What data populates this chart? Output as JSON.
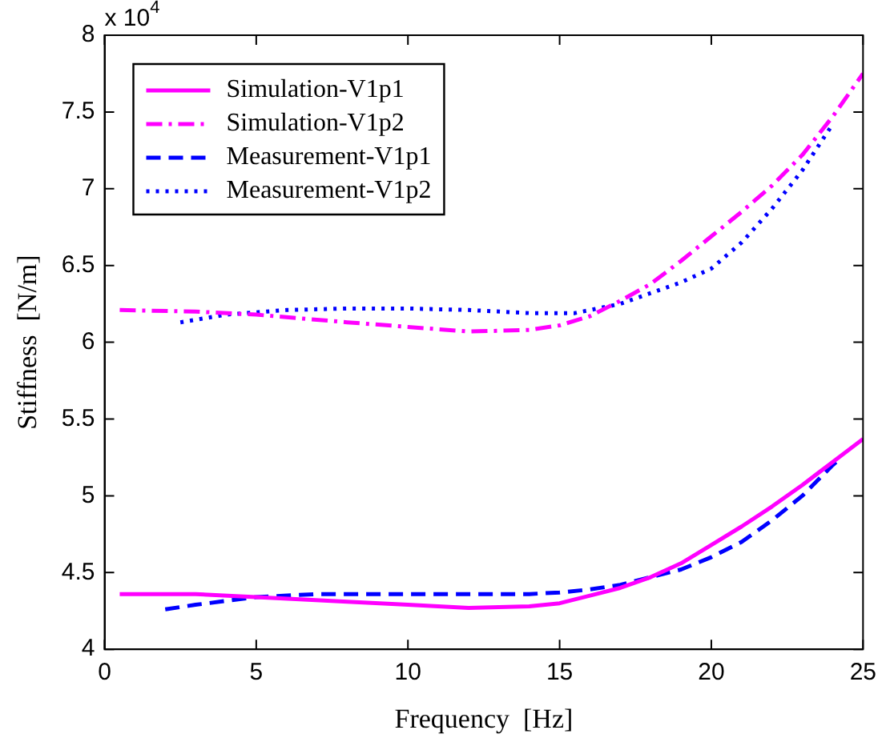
{
  "chart_data": {
    "type": "line",
    "xlabel": "Frequency  [Hz]",
    "ylabel": "Stiffness  [N/m]",
    "annotations": [
      "x 10$^{4}$"
    ],
    "xlim": [
      0,
      25
    ],
    "xticks": [
      0,
      5,
      10,
      15,
      20,
      25
    ],
    "ylim": [
      4,
      8
    ],
    "yticks": [
      4,
      4.5,
      5,
      5.5,
      6,
      6.5,
      7,
      7.5,
      8
    ],
    "grid": false,
    "legend": "top left",
    "marker": "none",
    "series": [
      {
        "name": "Simulation-V1p1",
        "color": "#ff00ff",
        "line_style": "solid",
        "x": [
          0.5,
          3,
          5,
          8,
          10,
          12,
          14,
          15,
          16,
          17,
          18,
          19,
          20,
          21,
          22,
          23,
          24,
          25
        ],
        "values": [
          4.36,
          4.36,
          4.34,
          4.31,
          4.29,
          4.27,
          4.28,
          4.3,
          4.35,
          4.4,
          4.47,
          4.56,
          4.68,
          4.8,
          4.93,
          5.07,
          5.22,
          5.37
        ]
      },
      {
        "name": "Simulation-V1p2",
        "color": "#ff00ff",
        "line_style": "dashdot",
        "x": [
          0.5,
          3,
          5,
          8,
          10,
          12,
          14,
          15,
          16,
          17,
          18,
          19,
          20,
          21,
          22,
          23,
          24,
          25
        ],
        "values": [
          6.21,
          6.2,
          6.18,
          6.13,
          6.1,
          6.07,
          6.08,
          6.11,
          6.17,
          6.27,
          6.38,
          6.53,
          6.69,
          6.85,
          7.02,
          7.22,
          7.47,
          7.75
        ]
      },
      {
        "name": "Measurement-V1p1",
        "color": "#0000ff",
        "line_style": "dashed",
        "x": [
          2,
          3,
          5,
          7,
          10,
          14,
          15,
          16,
          17,
          18,
          19,
          20,
          21,
          22,
          23,
          24,
          24.3
        ],
        "values": [
          4.26,
          4.29,
          4.34,
          4.36,
          4.36,
          4.36,
          4.37,
          4.39,
          4.42,
          4.47,
          4.52,
          4.6,
          4.7,
          4.84,
          5.0,
          5.2,
          5.25
        ]
      },
      {
        "name": "Measurement-V1p2",
        "color": "#0000ff",
        "line_style": "dotted",
        "x": [
          2.5,
          4,
          6,
          8,
          10,
          12,
          14,
          15.5,
          17,
          18,
          19,
          20,
          21,
          22,
          23,
          24
        ],
        "values": [
          6.13,
          6.18,
          6.21,
          6.22,
          6.22,
          6.21,
          6.19,
          6.19,
          6.25,
          6.32,
          6.39,
          6.48,
          6.65,
          6.87,
          7.12,
          7.42
        ]
      }
    ]
  }
}
